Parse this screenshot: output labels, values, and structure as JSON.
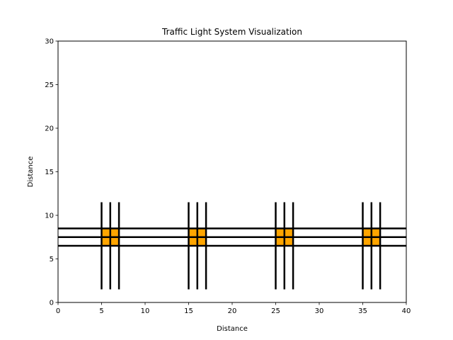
{
  "chart_data": {
    "type": "diagram",
    "title": "Traffic Light System Visualization",
    "xlabel": "Distance",
    "ylabel": "Distance",
    "xlim": [
      0,
      40
    ],
    "ylim": [
      0,
      30
    ],
    "xticks": [
      0,
      5,
      10,
      15,
      20,
      25,
      30,
      35,
      40
    ],
    "yticks": [
      0,
      5,
      10,
      15,
      20,
      25,
      30
    ],
    "grid": false,
    "roads": {
      "horizontal_y": [
        6.5,
        7.5,
        8.5
      ],
      "horizontal_x_range": [
        0,
        40
      ],
      "vertical_x_offsets": [
        -1,
        0,
        1
      ],
      "vertical_y_range": [
        1.5,
        11.5
      ]
    },
    "intersections": [
      {
        "x": 6,
        "y": 7.5
      },
      {
        "x": 16,
        "y": 7.5
      },
      {
        "x": 26,
        "y": 7.5
      },
      {
        "x": 36,
        "y": 7.5
      }
    ],
    "light_color": "#ffa500",
    "road_color": "#000000"
  }
}
